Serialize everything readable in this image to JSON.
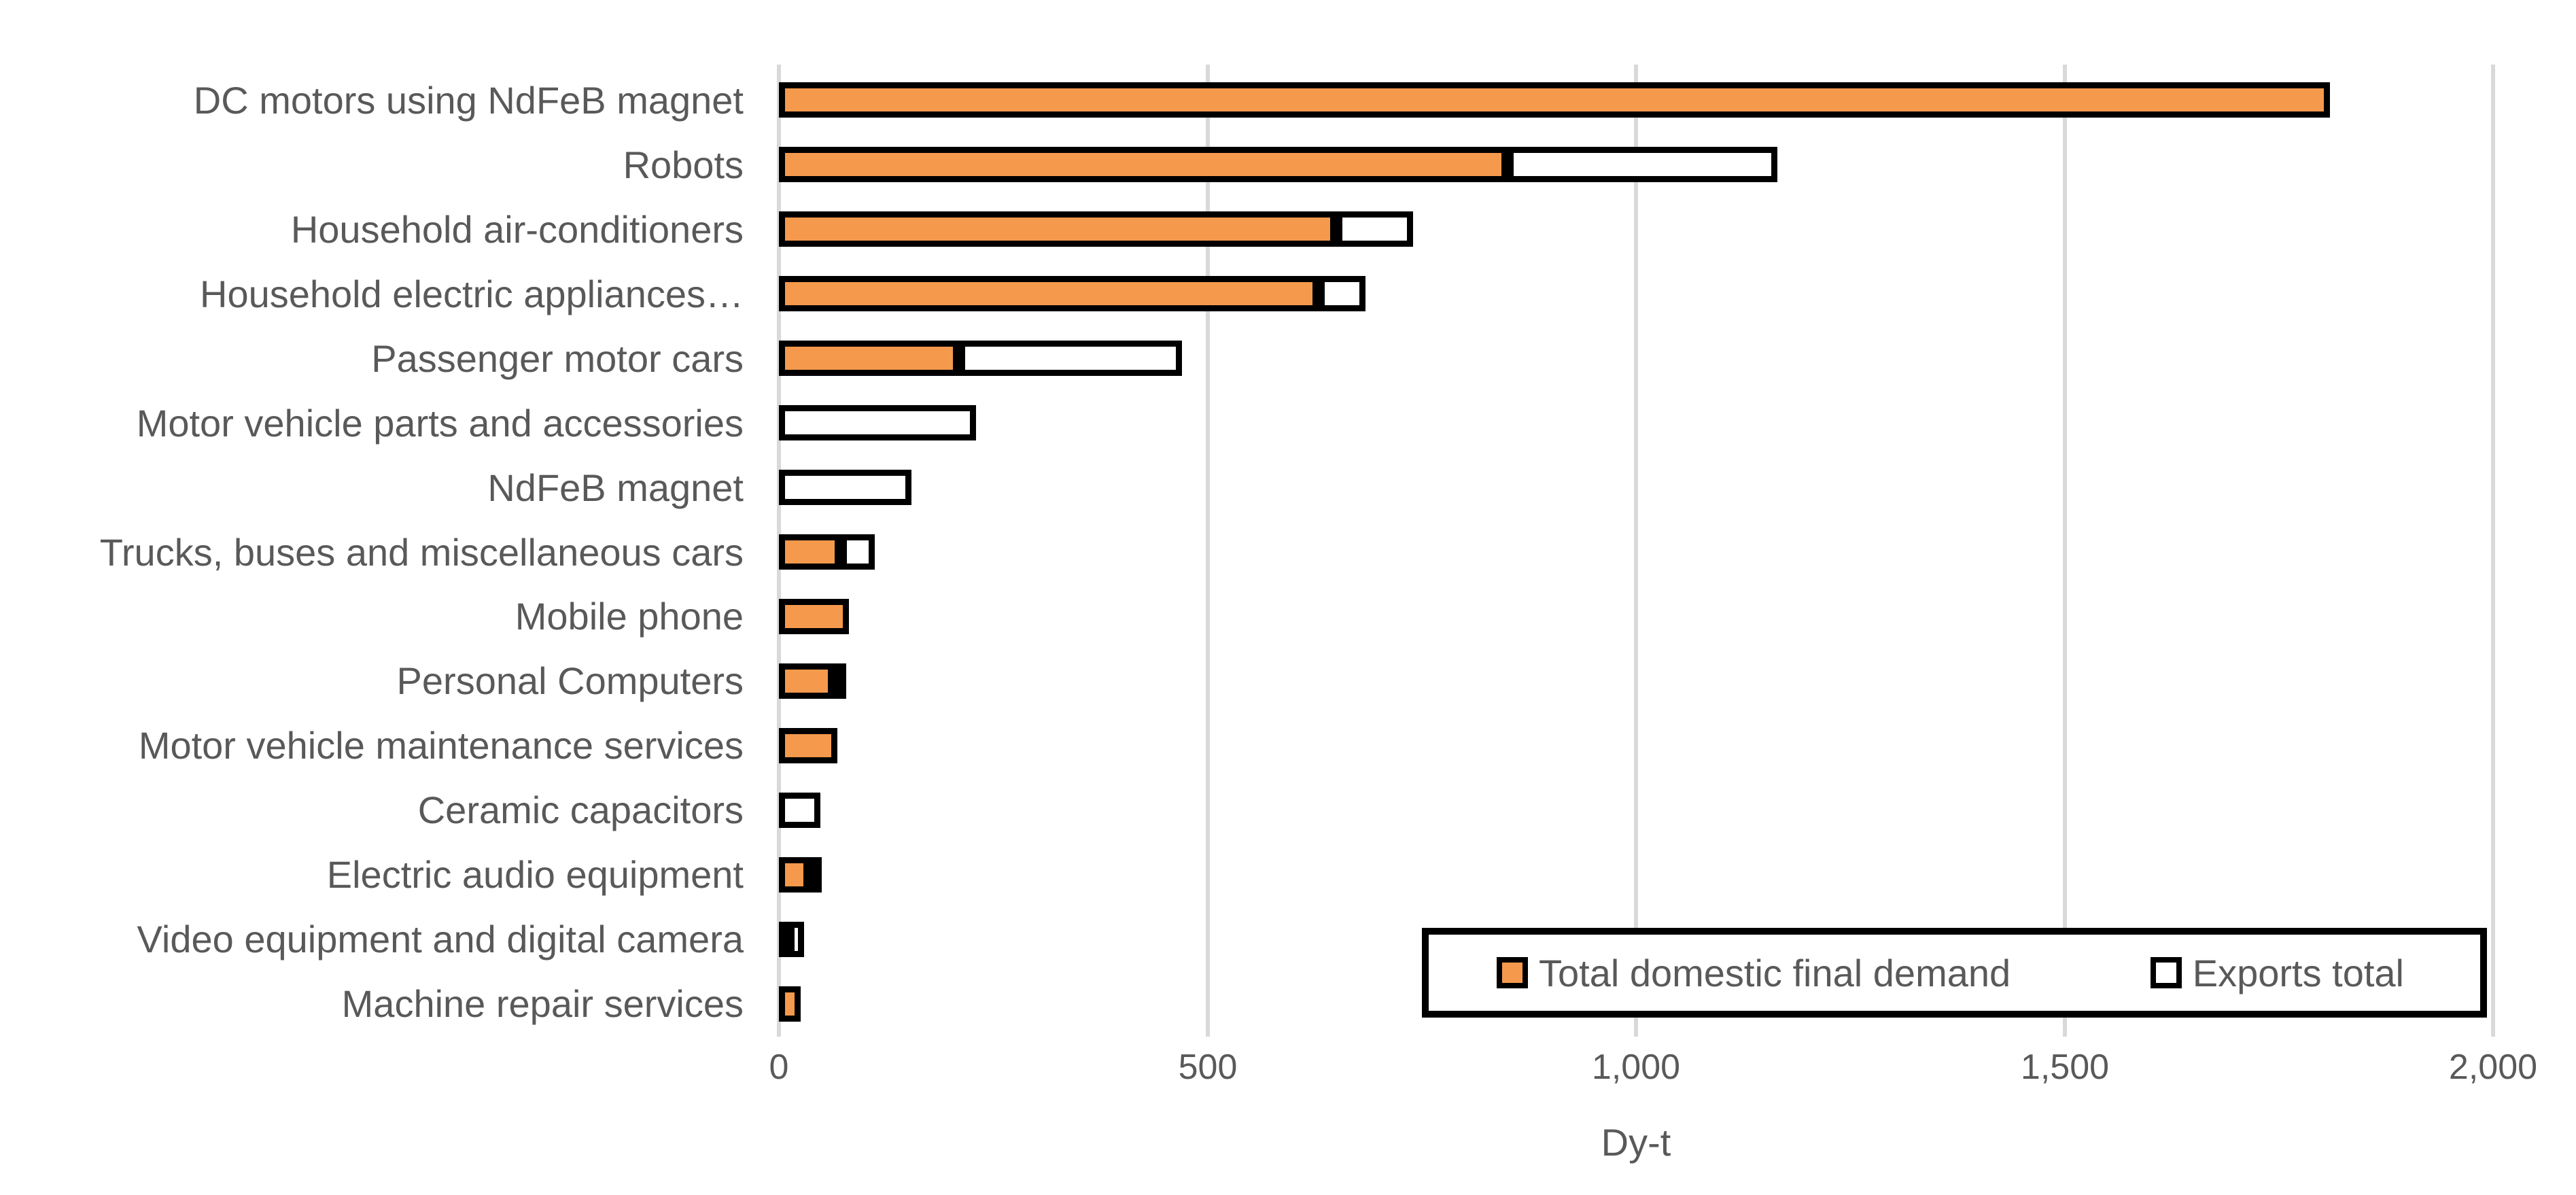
{
  "chart_data": {
    "type": "bar",
    "orientation": "horizontal",
    "stacked": true,
    "title": "",
    "xlabel": "Dy-t",
    "ylabel": "",
    "xlim": [
      0,
      2000
    ],
    "grid": true,
    "legend_position": "inside-bottom-right",
    "x_ticks": [
      {
        "value": 0,
        "label": "0"
      },
      {
        "value": 500,
        "label": "500"
      },
      {
        "value": 1000,
        "label": "1,000"
      },
      {
        "value": 1500,
        "label": "1,500"
      },
      {
        "value": 2000,
        "label": "2,000"
      }
    ],
    "categories": [
      "DC motors using NdFeB magnet",
      "Robots",
      "Household air-conditioners",
      "Household electric appliances…",
      "Passenger motor cars",
      "Motor vehicle parts and accessories",
      "NdFeB magnet",
      "Trucks, buses and miscellaneous cars",
      "Mobile phone",
      "Personal Computers",
      "Motor vehicle maintenance services",
      "Ceramic capacitors",
      "Electric audio equipment",
      "Video equipment and digital camera",
      "Machine repair services"
    ],
    "series": [
      {
        "name": "Total domestic final demand",
        "color": "#F5994D",
        "values": [
          1810,
          850,
          650,
          630,
          210,
          0,
          0,
          72,
          82,
          64,
          68,
          0,
          36,
          11,
          25
        ]
      },
      {
        "name": "Exports total",
        "color": "#FFFFFF",
        "values": [
          0,
          315,
          90,
          55,
          260,
          230,
          155,
          40,
          0,
          8,
          0,
          48,
          9,
          18,
          0
        ]
      }
    ]
  },
  "colors": {
    "bar_border": "#000000",
    "gridline": "#D9D9D9",
    "text": "#595959",
    "background": "#FFFFFF"
  }
}
